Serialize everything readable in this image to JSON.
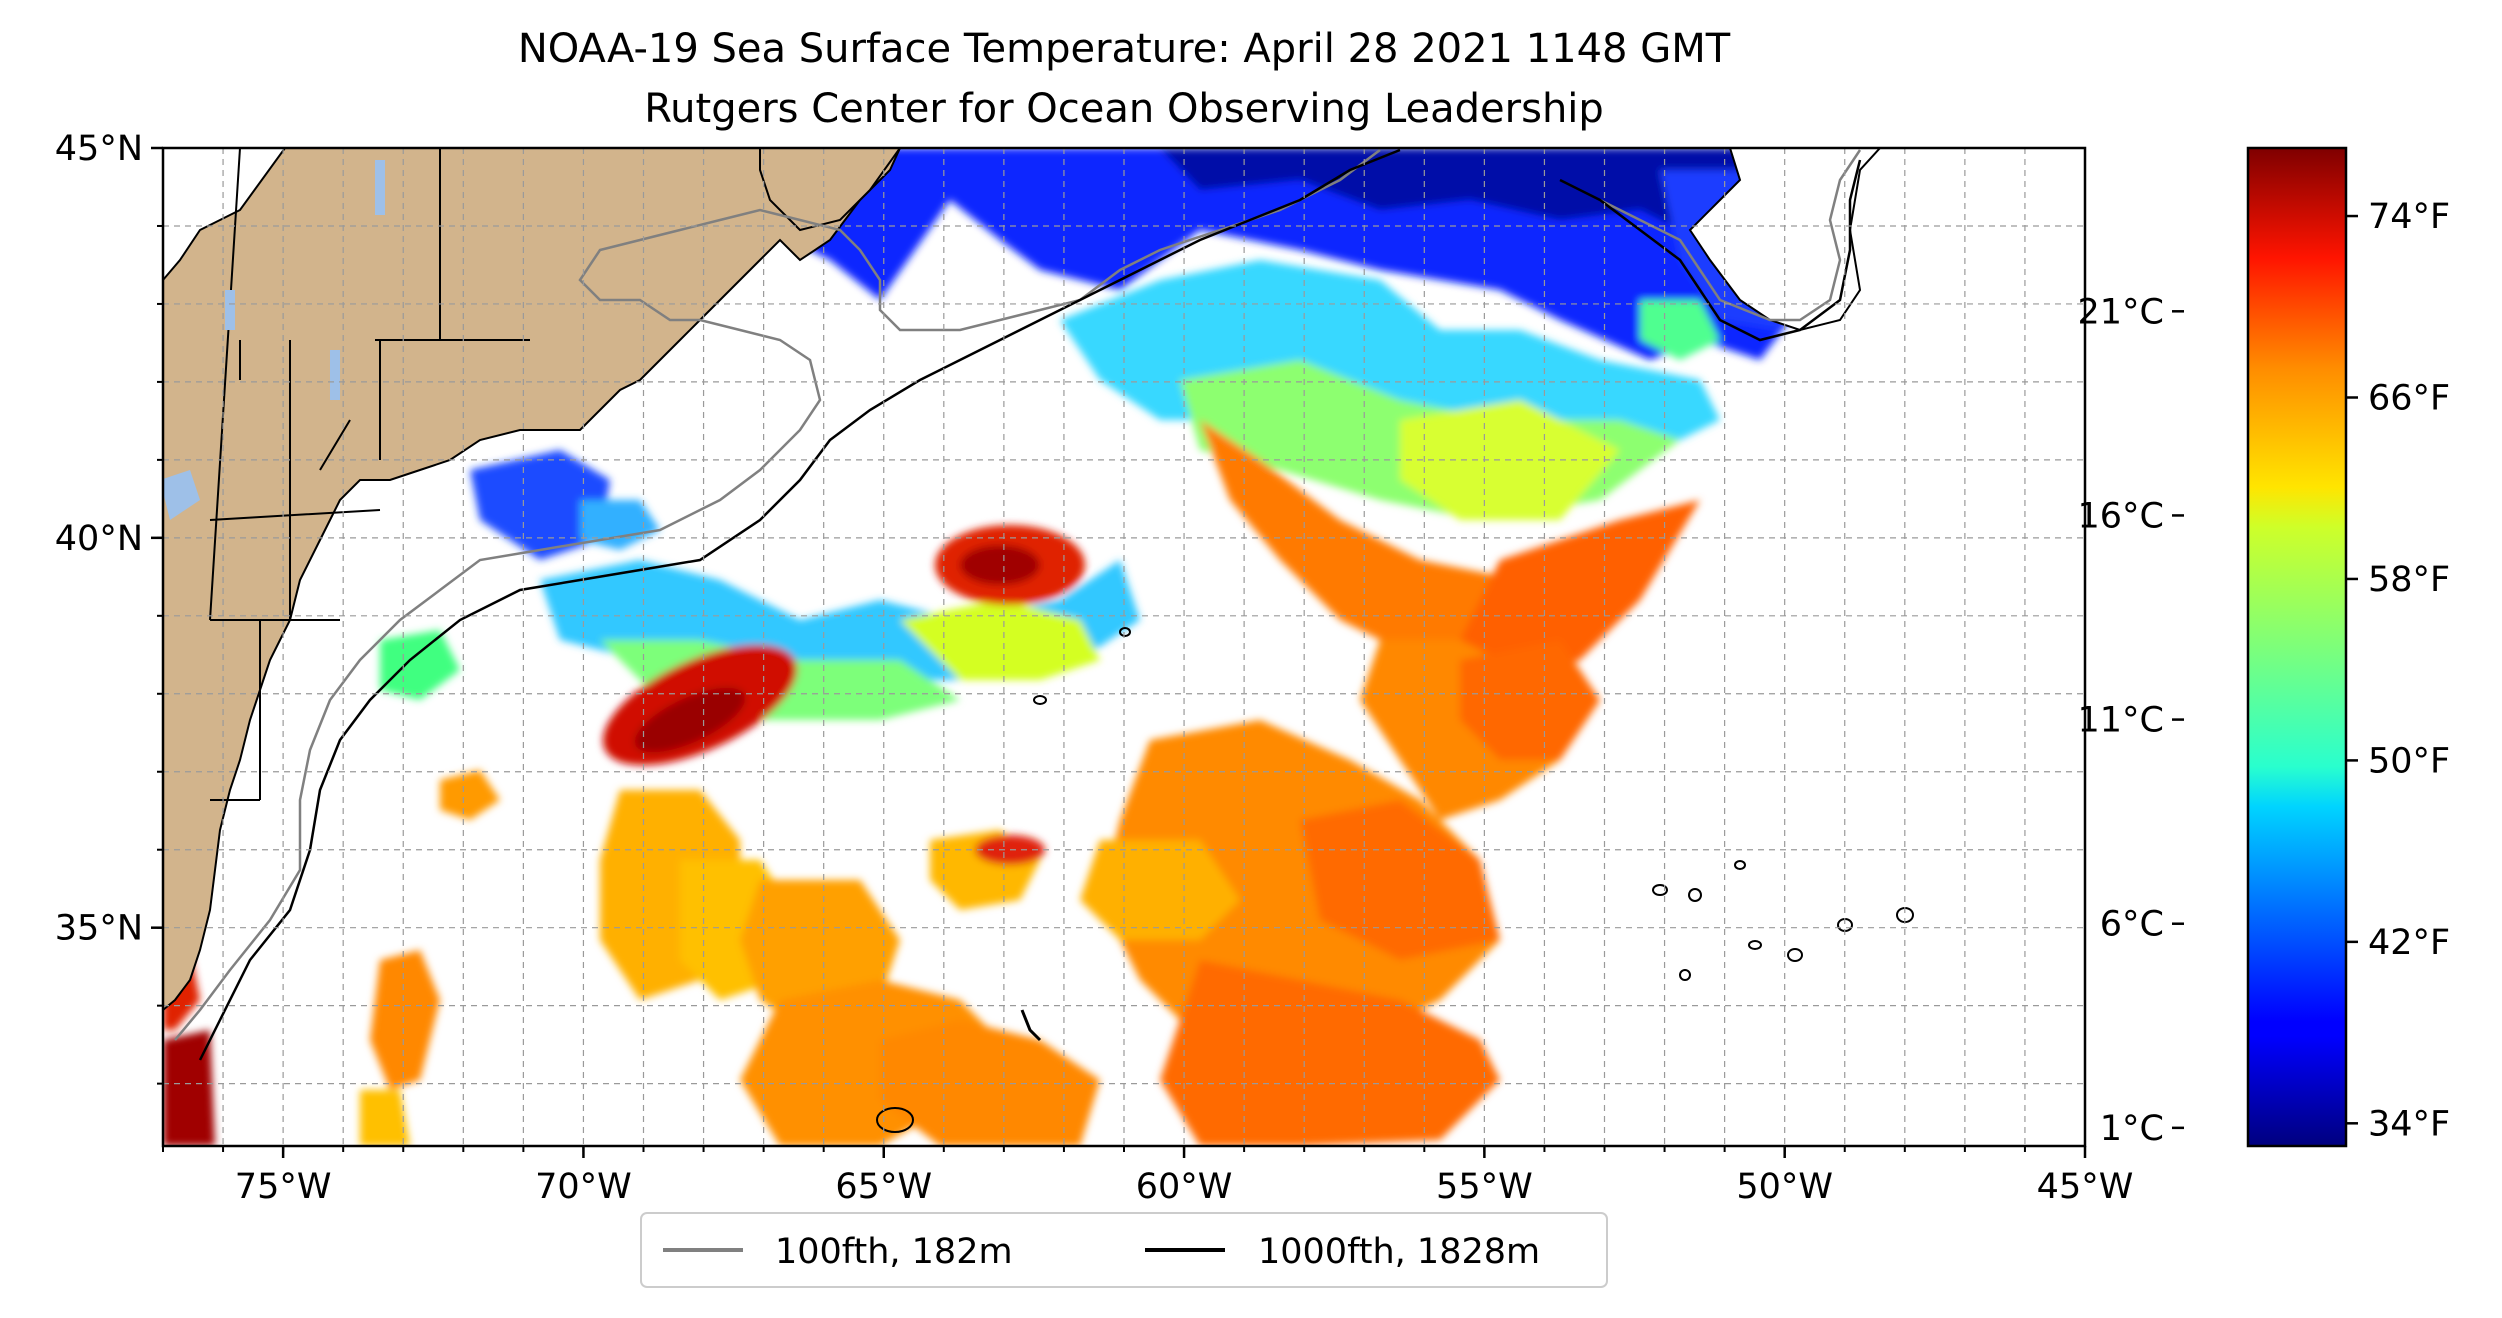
{
  "title": {
    "line1": "NOAA-19 Sea Surface Temperature: April 28 2021 1148 GMT",
    "line2": "Rutgers Center for Ocean Observing Leadership"
  },
  "map": {
    "lon_range": [
      -77,
      -45
    ],
    "lat_range": [
      32.2,
      45
    ],
    "gridlines": true,
    "x_ticks": [
      {
        "value": -75,
        "label": "75°W"
      },
      {
        "value": -70,
        "label": "70°W"
      },
      {
        "value": -65,
        "label": "65°W"
      },
      {
        "value": -60,
        "label": "60°W"
      },
      {
        "value": -55,
        "label": "55°W"
      },
      {
        "value": -50,
        "label": "50°W"
      },
      {
        "value": -45,
        "label": "45°W"
      }
    ],
    "y_ticks": [
      {
        "value": 45,
        "label": "45°N"
      },
      {
        "value": 40,
        "label": "40°N"
      },
      {
        "value": 35,
        "label": "35°N"
      }
    ],
    "colors": {
      "land": "#d2b48c",
      "lakes": "#9ec0e8",
      "isobath_100": "#808080",
      "isobath_1000": "#000000"
    }
  },
  "legend": {
    "items": [
      {
        "label": "100fth, 182m",
        "color": "#808080"
      },
      {
        "label": "1000fth, 1828m",
        "color": "#000000"
      }
    ]
  },
  "colorbar": {
    "colormap": "jet",
    "range_f": [
      33,
      77
    ],
    "fahrenheit_ticks": [
      {
        "value": 34,
        "label": "34°F"
      },
      {
        "value": 42,
        "label": "42°F"
      },
      {
        "value": 50,
        "label": "50°F"
      },
      {
        "value": 58,
        "label": "58°F"
      },
      {
        "value": 66,
        "label": "66°F"
      },
      {
        "value": 74,
        "label": "74°F"
      }
    ],
    "celsius_ticks": [
      {
        "value": 1,
        "label": "1°C"
      },
      {
        "value": 6,
        "label": "6°C"
      },
      {
        "value": 11,
        "label": "11°C"
      },
      {
        "value": 16,
        "label": "16°C"
      },
      {
        "value": 21,
        "label": "21°C"
      }
    ]
  }
}
